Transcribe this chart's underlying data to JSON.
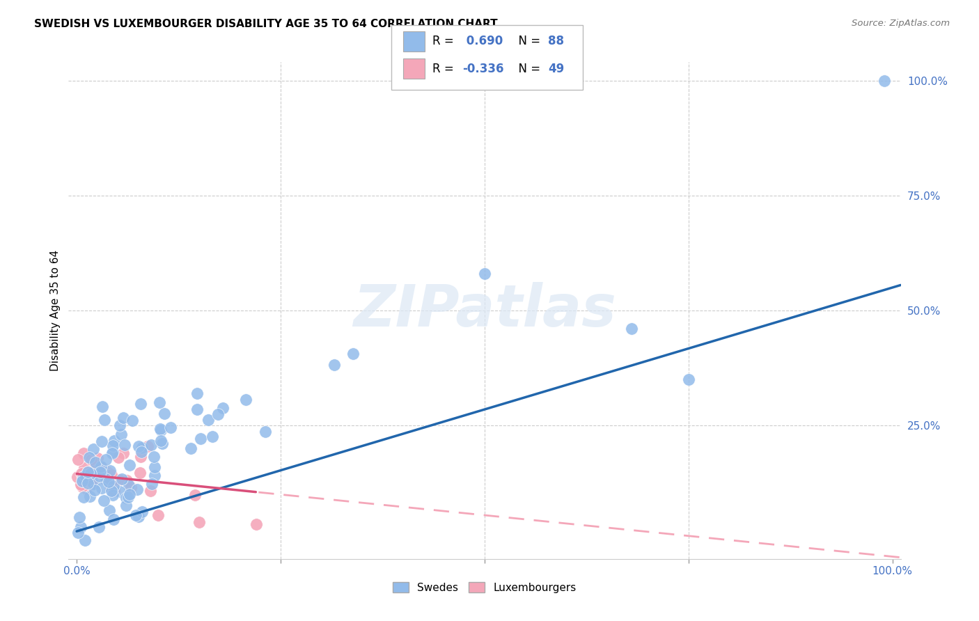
{
  "title": "SWEDISH VS LUXEMBOURGER DISABILITY AGE 35 TO 64 CORRELATION CHART",
  "source": "Source: ZipAtlas.com",
  "ylabel": "Disability Age 35 to 64",
  "R_swedes": 0.69,
  "N_swedes": 88,
  "R_luxembourgers": -0.336,
  "N_luxembourgers": 49,
  "swede_color": "#92BBEA",
  "luxembourger_color": "#F4A7B9",
  "swede_line_color": "#2166ac",
  "luxembourger_line_solid_color": "#D94F7A",
  "luxembourger_line_dash_color": "#F4A7B9",
  "background_color": "#ffffff",
  "watermark": "ZIPatlas",
  "legend_label_swedes": "Swedes",
  "legend_label_luxembourgers": "Luxembourgers",
  "grid_color": "#cccccc",
  "title_fontsize": 11,
  "axis_tick_color": "#4472c4",
  "axis_tick_fontsize": 11
}
